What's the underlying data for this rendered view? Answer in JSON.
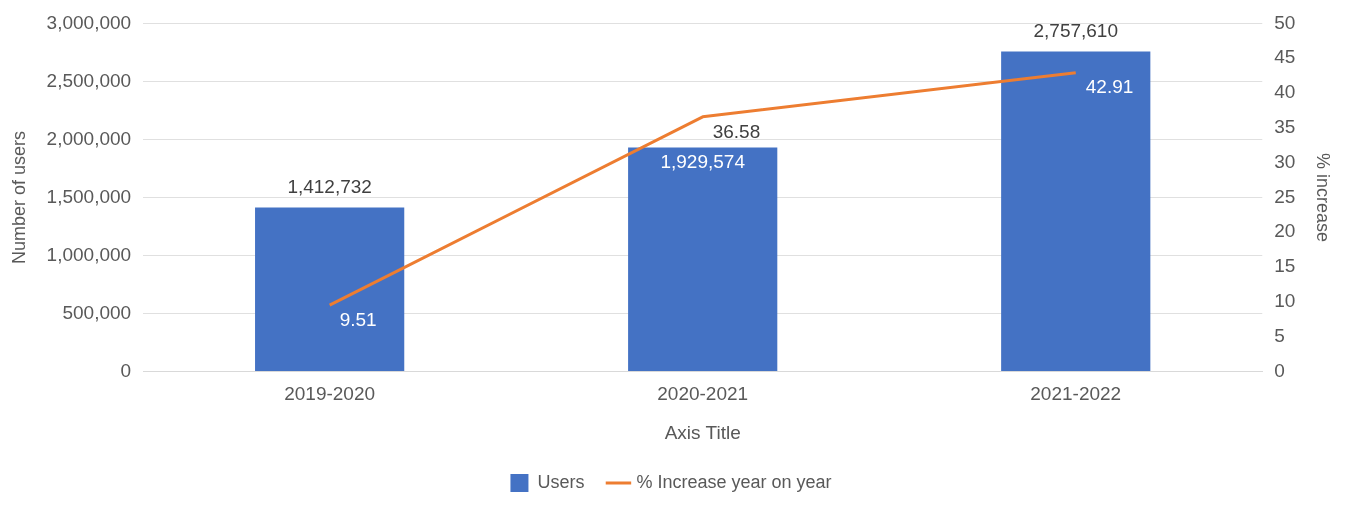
{
  "chart_data": {
    "type": "bar",
    "categories": [
      "2019-2020",
      "2020-2021",
      "2021-2022"
    ],
    "xlabel": "Axis Title",
    "ylabel": "Number of users",
    "y2label": "% increase",
    "series": [
      {
        "name": "Users",
        "color": "#4472c4",
        "values": [
          1412732,
          1929574,
          2757610
        ],
        "value_labels": [
          "1,412,732",
          "1,929,574",
          "2,757,610"
        ]
      },
      {
        "name": "% Increase year on year",
        "type": "line",
        "axis": "y2",
        "color": "#ed7d31",
        "values": [
          9.51,
          36.58,
          42.91
        ],
        "value_labels": [
          "9.51",
          "36.58",
          "42.91"
        ]
      }
    ],
    "ylim": [
      0,
      3000000
    ],
    "yticks": [
      {
        "value": 0,
        "label": "0"
      },
      {
        "value": 500000,
        "label": "500,000"
      },
      {
        "value": 1000000,
        "label": "1,000,000"
      },
      {
        "value": 1500000,
        "label": "1,500,000"
      },
      {
        "value": 2000000,
        "label": "2,000,000"
      },
      {
        "value": 2500000,
        "label": "2,500,000"
      },
      {
        "value": 3000000,
        "label": "3,000,000"
      }
    ],
    "y2lim": [
      0,
      50
    ],
    "y2ticks": [
      0,
      5,
      10,
      15,
      20,
      25,
      30,
      35,
      40,
      45,
      50
    ],
    "grid": "y",
    "legend": "bottom",
    "marker": "none",
    "line_style": "solid"
  }
}
